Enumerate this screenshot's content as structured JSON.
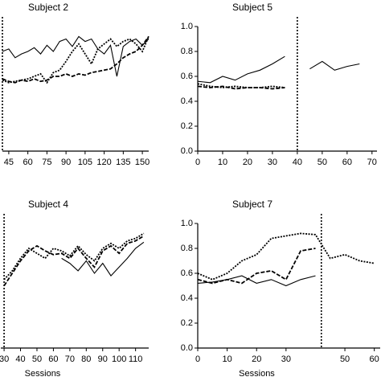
{
  "chart_data": [
    {
      "type": "line",
      "title": "Subject 2",
      "phase_line": 40,
      "x": [
        40,
        45,
        50,
        55,
        60,
        65,
        70,
        75,
        80,
        85,
        90,
        95,
        100,
        105,
        110,
        115,
        120,
        125,
        130,
        135,
        140,
        145,
        150,
        155
      ],
      "xlim": [
        40,
        155
      ],
      "xticks": [
        45,
        60,
        75,
        90,
        105,
        120,
        135,
        150
      ],
      "ylim": [
        0,
        1
      ],
      "series": [
        {
          "color": "#000000",
          "style": "solid",
          "values": [
            0.8,
            0.82,
            0.75,
            0.78,
            0.8,
            0.83,
            0.78,
            0.85,
            0.8,
            0.88,
            0.9,
            0.84,
            0.92,
            0.88,
            0.9,
            0.82,
            0.78,
            0.85,
            0.6,
            0.84,
            0.88,
            0.9,
            0.85,
            0.9
          ]
        },
        {
          "color": "#000000",
          "style": "dotted",
          "values": [
            0.57,
            0.55,
            0.56,
            0.57,
            0.58,
            0.6,
            0.62,
            0.55,
            0.63,
            0.65,
            0.72,
            0.8,
            0.86,
            0.78,
            0.7,
            0.82,
            0.86,
            0.9,
            0.84,
            0.88,
            0.9,
            0.86,
            0.8,
            0.92
          ]
        },
        {
          "color": "#000000",
          "style": "dashed",
          "values": [
            0.58,
            0.56,
            0.55,
            0.57,
            0.56,
            0.58,
            0.56,
            0.57,
            0.6,
            0.6,
            0.62,
            0.6,
            0.62,
            0.61,
            0.63,
            0.64,
            0.65,
            0.66,
            0.7,
            0.75,
            0.78,
            0.8,
            0.85,
            0.92
          ]
        }
      ]
    },
    {
      "type": "line",
      "title": "Subject 5",
      "phase_line": 40,
      "x": [
        0,
        5,
        10,
        15,
        20,
        25,
        30,
        35,
        40,
        45,
        50,
        55,
        60,
        65
      ],
      "xlim": [
        0,
        72
      ],
      "xticks": [
        0,
        10,
        20,
        30,
        40,
        50,
        60,
        70
      ],
      "ylim": [
        0,
        1
      ],
      "yticks": [
        {
          "value": 0,
          "label": "0.0"
        },
        {
          "value": 0.2,
          "label": "0.2"
        },
        {
          "value": 0.4,
          "label": "0.4"
        },
        {
          "value": 0.6,
          "label": "0.6"
        },
        {
          "value": 0.8,
          "label": "0.8"
        },
        {
          "value": 1,
          "label": "1.0"
        }
      ],
      "series": [
        {
          "color": "#000000",
          "style": "solid",
          "values": [
            0.56,
            0.55,
            0.6,
            0.57,
            0.62,
            0.65,
            0.7,
            0.76,
            null,
            0.66,
            0.72,
            0.65,
            0.68,
            0.7
          ]
        },
        {
          "color": "#000000",
          "style": "dotted",
          "values": [
            0.54,
            0.52,
            0.51,
            0.52,
            0.51,
            0.51,
            0.52,
            0.51,
            null,
            null,
            null,
            null,
            null,
            null
          ]
        },
        {
          "color": "#000000",
          "style": "dashed",
          "values": [
            0.52,
            0.51,
            0.52,
            0.5,
            0.51,
            0.51,
            0.5,
            0.51,
            null,
            null,
            null,
            null,
            null,
            null
          ]
        }
      ]
    },
    {
      "type": "line",
      "title": "Subject 4",
      "phase_line": 30,
      "xlabel": "Sessions",
      "x": [
        30,
        35,
        40,
        45,
        50,
        55,
        60,
        65,
        70,
        75,
        80,
        85,
        90,
        95,
        100,
        105,
        110,
        115
      ],
      "xlim": [
        28,
        118
      ],
      "xticks": [
        30,
        40,
        50,
        60,
        70,
        80,
        90,
        100,
        110
      ],
      "ylim": [
        0,
        1
      ],
      "series": [
        {
          "color": "#000000",
          "style": "dashed",
          "values": [
            0.5,
            0.6,
            0.7,
            0.78,
            0.82,
            0.78,
            0.75,
            0.76,
            0.72,
            0.8,
            0.72,
            0.65,
            0.78,
            0.82,
            0.76,
            0.84,
            0.86,
            0.9
          ]
        },
        {
          "color": "#000000",
          "style": "dotted",
          "values": [
            0.55,
            0.62,
            0.72,
            0.8,
            0.76,
            0.72,
            0.8,
            0.78,
            0.74,
            0.82,
            0.75,
            0.7,
            0.8,
            0.84,
            0.8,
            0.86,
            0.88,
            0.92
          ]
        },
        {
          "color": "#000000",
          "style": "solid",
          "values": [
            null,
            null,
            null,
            null,
            null,
            null,
            null,
            0.72,
            0.68,
            0.62,
            0.7,
            0.6,
            0.68,
            0.58,
            0.65,
            0.72,
            0.8,
            0.85
          ]
        }
      ]
    },
    {
      "type": "line",
      "title": "Subject 7",
      "phase_line": 42,
      "xlabel": "Sessions",
      "x": [
        0,
        5,
        10,
        15,
        20,
        25,
        30,
        35,
        40,
        45,
        50,
        55,
        60
      ],
      "xlim": [
        0,
        62
      ],
      "xticks": [
        0,
        10,
        20,
        30,
        50,
        60
      ],
      "ylim": [
        0,
        1
      ],
      "yticks": [
        {
          "value": 0,
          "label": "0.0"
        },
        {
          "value": 0.2,
          "label": "0.2"
        },
        {
          "value": 0.4,
          "label": "0.4"
        },
        {
          "value": 0.6,
          "label": "0.6"
        },
        {
          "value": 0.8,
          "label": "0.8"
        },
        {
          "value": 1,
          "label": "1.0"
        }
      ],
      "series": [
        {
          "color": "#000000",
          "style": "dotted",
          "values": [
            0.6,
            0.55,
            0.6,
            0.7,
            0.75,
            0.88,
            0.9,
            0.92,
            0.91,
            0.72,
            0.75,
            0.7,
            0.68
          ]
        },
        {
          "color": "#000000",
          "style": "dashed",
          "values": [
            0.55,
            0.52,
            0.55,
            0.52,
            0.6,
            0.62,
            0.55,
            0.78,
            0.8,
            null,
            null,
            null,
            null
          ]
        },
        {
          "color": "#000000",
          "style": "solid",
          "values": [
            0.52,
            0.53,
            0.55,
            0.58,
            0.52,
            0.55,
            0.5,
            0.55,
            0.58,
            null,
            null,
            null,
            null
          ]
        }
      ]
    }
  ]
}
